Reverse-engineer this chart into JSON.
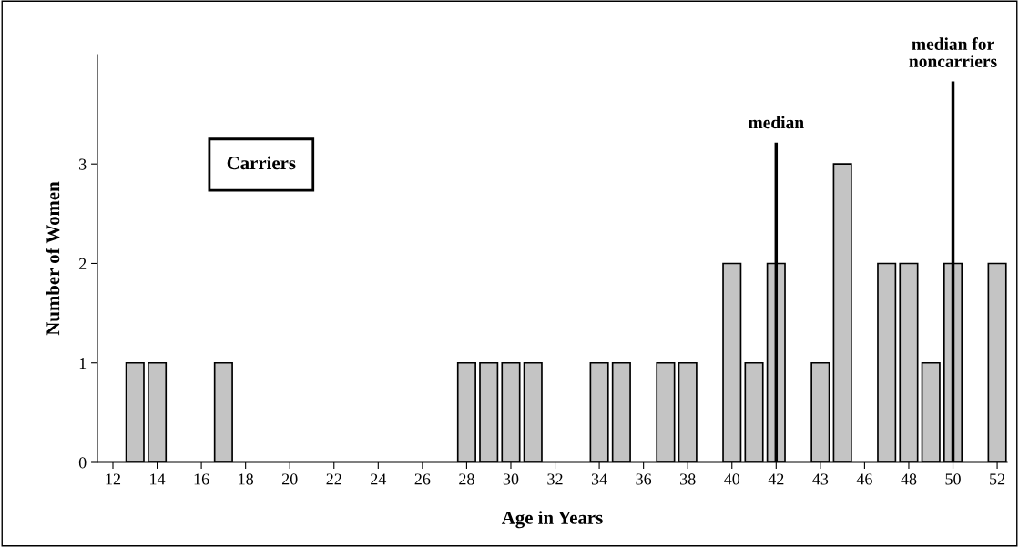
{
  "chart_data": {
    "type": "bar",
    "xlabel": "Age in Years",
    "ylabel": "Number of Women",
    "categories": [
      "12",
      null,
      "14",
      null,
      "16",
      null,
      "18",
      null,
      "20",
      null,
      "22",
      null,
      "24",
      null,
      "26",
      null,
      "28",
      null,
      "30",
      null,
      "32",
      null,
      "34",
      null,
      "36",
      null,
      "38",
      null,
      "40",
      null,
      "42",
      null,
      "43",
      null,
      "46",
      null,
      "48",
      null,
      "50",
      null,
      "52"
    ],
    "values": [
      null,
      1,
      1,
      null,
      null,
      1,
      null,
      null,
      null,
      null,
      null,
      null,
      null,
      null,
      null,
      null,
      1,
      1,
      1,
      1,
      null,
      null,
      1,
      1,
      null,
      1,
      1,
      null,
      2,
      1,
      2,
      null,
      1,
      3,
      null,
      2,
      2,
      1,
      2,
      null,
      2
    ],
    "color": "#c4c4c4",
    "ylim": [
      0,
      4.1
    ],
    "yticks": [
      0,
      1,
      2,
      3
    ],
    "ref_lines": [
      {
        "axis": "x",
        "value": "42",
        "label": "median"
      },
      {
        "axis": "x",
        "value": "50",
        "label": "median for\nnoncarriers"
      }
    ],
    "annotations": [
      "Carriers"
    ],
    "grid": false,
    "legend": false
  }
}
